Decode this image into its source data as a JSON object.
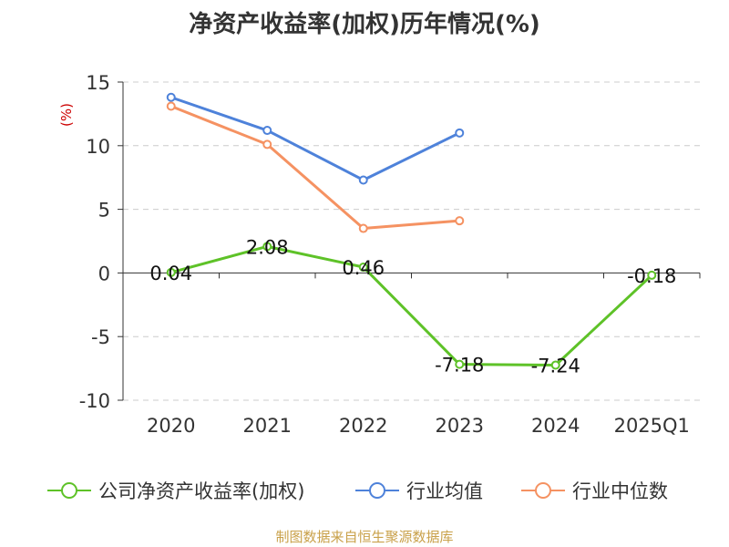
{
  "title": "净资产收益率(加权)历年情况(%)",
  "source": "制图数据来自恒生聚源数据库",
  "colors": {
    "series1": "#5ec228",
    "series2": "#4e82da",
    "series3": "#f59262",
    "grid": "#cccccc",
    "axis": "#333333",
    "ylabel": "#cc0000"
  },
  "chart_data": {
    "type": "line",
    "title": "净资产收益率(加权)历年情况(%)",
    "ylabel": "(%)",
    "xlabel": "",
    "categories": [
      "2020",
      "2021",
      "2022",
      "2023",
      "2024",
      "2025Q1"
    ],
    "ylim": [
      -10,
      15
    ],
    "yticks": [
      15,
      10,
      5,
      0,
      -5,
      -10
    ],
    "grid": true,
    "legend_position": "bottom",
    "series": [
      {
        "name": "公司净资产收益率(加权)",
        "values": [
          0.04,
          2.08,
          0.46,
          -7.18,
          -7.24,
          -0.18
        ],
        "labels": [
          "0.04",
          "2.08",
          "0.46",
          "-7.18",
          "-7.24",
          "-0.18"
        ]
      },
      {
        "name": "行业均值",
        "values": [
          13.8,
          11.2,
          7.3,
          11.0,
          null,
          null
        ]
      },
      {
        "name": "行业中位数",
        "values": [
          13.1,
          10.1,
          3.5,
          4.1,
          null,
          null
        ]
      }
    ]
  }
}
